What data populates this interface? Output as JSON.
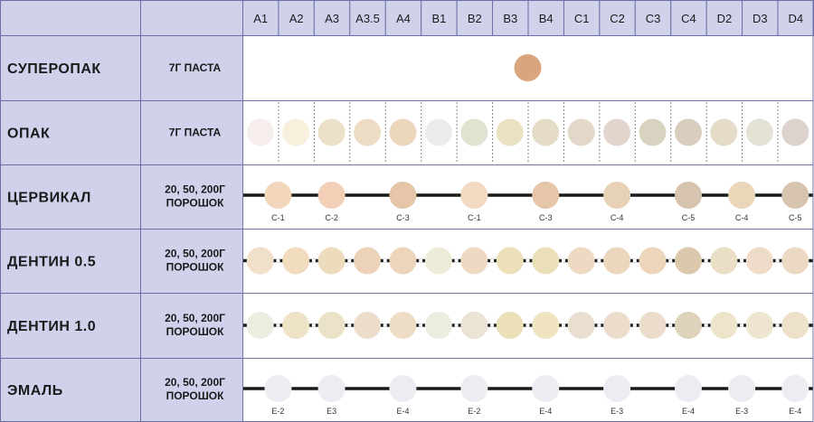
{
  "shades": [
    "A1",
    "A2",
    "A3",
    "A3.5",
    "A4",
    "B1",
    "B2",
    "B3",
    "B4",
    "C1",
    "C2",
    "C3",
    "C4",
    "D2",
    "D3",
    "D4"
  ],
  "rows": [
    {
      "name": "СУПЕРОПАК",
      "form": [
        "7Г ПАСТА"
      ],
      "swatches": [
        {
          "col": 7.5,
          "color": "#d8a57e"
        }
      ],
      "line": false,
      "dashed": false,
      "labels": []
    },
    {
      "name": "ОПАК",
      "form": [
        "7Г ПАСТА"
      ],
      "swatches": [
        {
          "col": 0,
          "color": "#f6eeec"
        },
        {
          "col": 1,
          "color": "#f6f0dd"
        },
        {
          "col": 2,
          "color": "#ede0c8"
        },
        {
          "col": 3,
          "color": "#ecdcc3"
        },
        {
          "col": 4,
          "color": "#ecd6bc"
        },
        {
          "col": 5,
          "color": "#ececec"
        },
        {
          "col": 6,
          "color": "#e2e2d0"
        },
        {
          "col": 7,
          "color": "#eae1c2"
        },
        {
          "col": 8,
          "color": "#e4dcc6"
        },
        {
          "col": 9,
          "color": "#e2d7c9"
        },
        {
          "col": 10,
          "color": "#e3d5cd"
        },
        {
          "col": 11,
          "color": "#d8d3c0"
        },
        {
          "col": 12,
          "color": "#d9cdbe"
        },
        {
          "col": 13,
          "color": "#e4dcc9"
        },
        {
          "col": 14,
          "color": "#e4e1d5"
        },
        {
          "col": 15,
          "color": "#dcd2ce"
        }
      ],
      "line": false,
      "dashed": true,
      "labels": []
    },
    {
      "name": "ЦЕРВИКАЛ",
      "form": [
        "20, 50, 200Г",
        "ПОРОШОК"
      ],
      "swatches": [
        {
          "col": 0.5,
          "color": "#f2d7bd",
          "label": "C-1"
        },
        {
          "col": 2,
          "color": "#f1d0b7",
          "label": "C-2"
        },
        {
          "col": 4,
          "color": "#e6c6a9",
          "label": "C-3"
        },
        {
          "col": 6,
          "color": "#f3d9c1",
          "label": "C-1"
        },
        {
          "col": 8,
          "color": "#e6c6a9",
          "label": "C-3"
        },
        {
          "col": 10,
          "color": "#e7d2b8",
          "label": "C-4"
        },
        {
          "col": 12,
          "color": "#d7c4ae",
          "label": "C-5"
        },
        {
          "col": 13.5,
          "color": "#ead6b8",
          "label": "C-4"
        },
        {
          "col": 15,
          "color": "#d7c4ae",
          "label": "C-5"
        }
      ],
      "line": true,
      "dashed": false,
      "labels": [
        "C-1",
        "C-2",
        "C-3",
        "C-1",
        "C-3",
        "C-4",
        "C-5",
        "C-4",
        "C-5"
      ]
    },
    {
      "name": "ДЕНТИН 0.5",
      "form": [
        "20, 50, 200Г",
        "ПОРОШОК"
      ],
      "swatches": [
        {
          "col": 0,
          "color": "#f0dfc9"
        },
        {
          "col": 1,
          "color": "#f1dcc0"
        },
        {
          "col": 2,
          "color": "#ecdcbd"
        },
        {
          "col": 3,
          "color": "#ebd2b8"
        },
        {
          "col": 4,
          "color": "#ecd5ba"
        },
        {
          "col": 5,
          "color": "#eeecd8"
        },
        {
          "col": 6,
          "color": "#efd9c3"
        },
        {
          "col": 7,
          "color": "#ede0b9"
        },
        {
          "col": 8,
          "color": "#ebdfb7"
        },
        {
          "col": 9,
          "color": "#eedac3"
        },
        {
          "col": 10,
          "color": "#ecd6bd"
        },
        {
          "col": 11,
          "color": "#ecd5bb"
        },
        {
          "col": 12,
          "color": "#dbc8ad"
        },
        {
          "col": 13,
          "color": "#eadfc5"
        },
        {
          "col": 14,
          "color": "#efdcc8"
        },
        {
          "col": 15,
          "color": "#ecd9c3"
        }
      ],
      "line": true,
      "dashed": false,
      "labels": []
    },
    {
      "name": "ДЕНТИН 1.0",
      "form": [
        "20, 50, 200Г",
        "ПОРОШОК"
      ],
      "swatches": [
        {
          "col": 0,
          "color": "#ecede0"
        },
        {
          "col": 1,
          "color": "#eee2c7"
        },
        {
          "col": 2,
          "color": "#ebe3c8"
        },
        {
          "col": 3,
          "color": "#ecddcb"
        },
        {
          "col": 4,
          "color": "#eeddc5"
        },
        {
          "col": 5,
          "color": "#ececdf"
        },
        {
          "col": 6,
          "color": "#ebe3d3"
        },
        {
          "col": 7,
          "color": "#ece0b8"
        },
        {
          "col": 8,
          "color": "#efe4bf"
        },
        {
          "col": 9,
          "color": "#e9dfd1"
        },
        {
          "col": 10,
          "color": "#ecdccb"
        },
        {
          "col": 11,
          "color": "#ebdccb"
        },
        {
          "col": 12,
          "color": "#dfd3bb"
        },
        {
          "col": 13,
          "color": "#ece5cc"
        },
        {
          "col": 14,
          "color": "#ede4d1"
        },
        {
          "col": 15,
          "color": "#eee1c9"
        }
      ],
      "line": true,
      "dashed": false,
      "labels": []
    },
    {
      "name": "ЭМАЛЬ",
      "form": [
        "20, 50, 200Г",
        "ПОРОШОК"
      ],
      "swatches": [
        {
          "col": 0.5,
          "color": "#ececf3",
          "label": "E-2"
        },
        {
          "col": 2,
          "color": "#ececf3",
          "label": "E3"
        },
        {
          "col": 4,
          "color": "#ececf3",
          "label": "E-4"
        },
        {
          "col": 6,
          "color": "#ececf3",
          "label": "E-2"
        },
        {
          "col": 8,
          "color": "#ececf3",
          "label": "E-4"
        },
        {
          "col": 10,
          "color": "#ececf3",
          "label": "E-3"
        },
        {
          "col": 12,
          "color": "#ececf3",
          "label": "E-4"
        },
        {
          "col": 13.5,
          "color": "#ececf3",
          "label": "E-3"
        },
        {
          "col": 15,
          "color": "#ececf3",
          "label": "E-4"
        }
      ],
      "line": true,
      "dashed": false,
      "labels": [
        "E-2",
        "E3",
        "E-4",
        "E-2",
        "E-4",
        "E-3",
        "E-4",
        "E-3",
        "E-4"
      ]
    }
  ],
  "colors": {
    "header_fill": "#d0d2ec",
    "border": "#6d6fa6",
    "line": "#1a1a1a"
  }
}
